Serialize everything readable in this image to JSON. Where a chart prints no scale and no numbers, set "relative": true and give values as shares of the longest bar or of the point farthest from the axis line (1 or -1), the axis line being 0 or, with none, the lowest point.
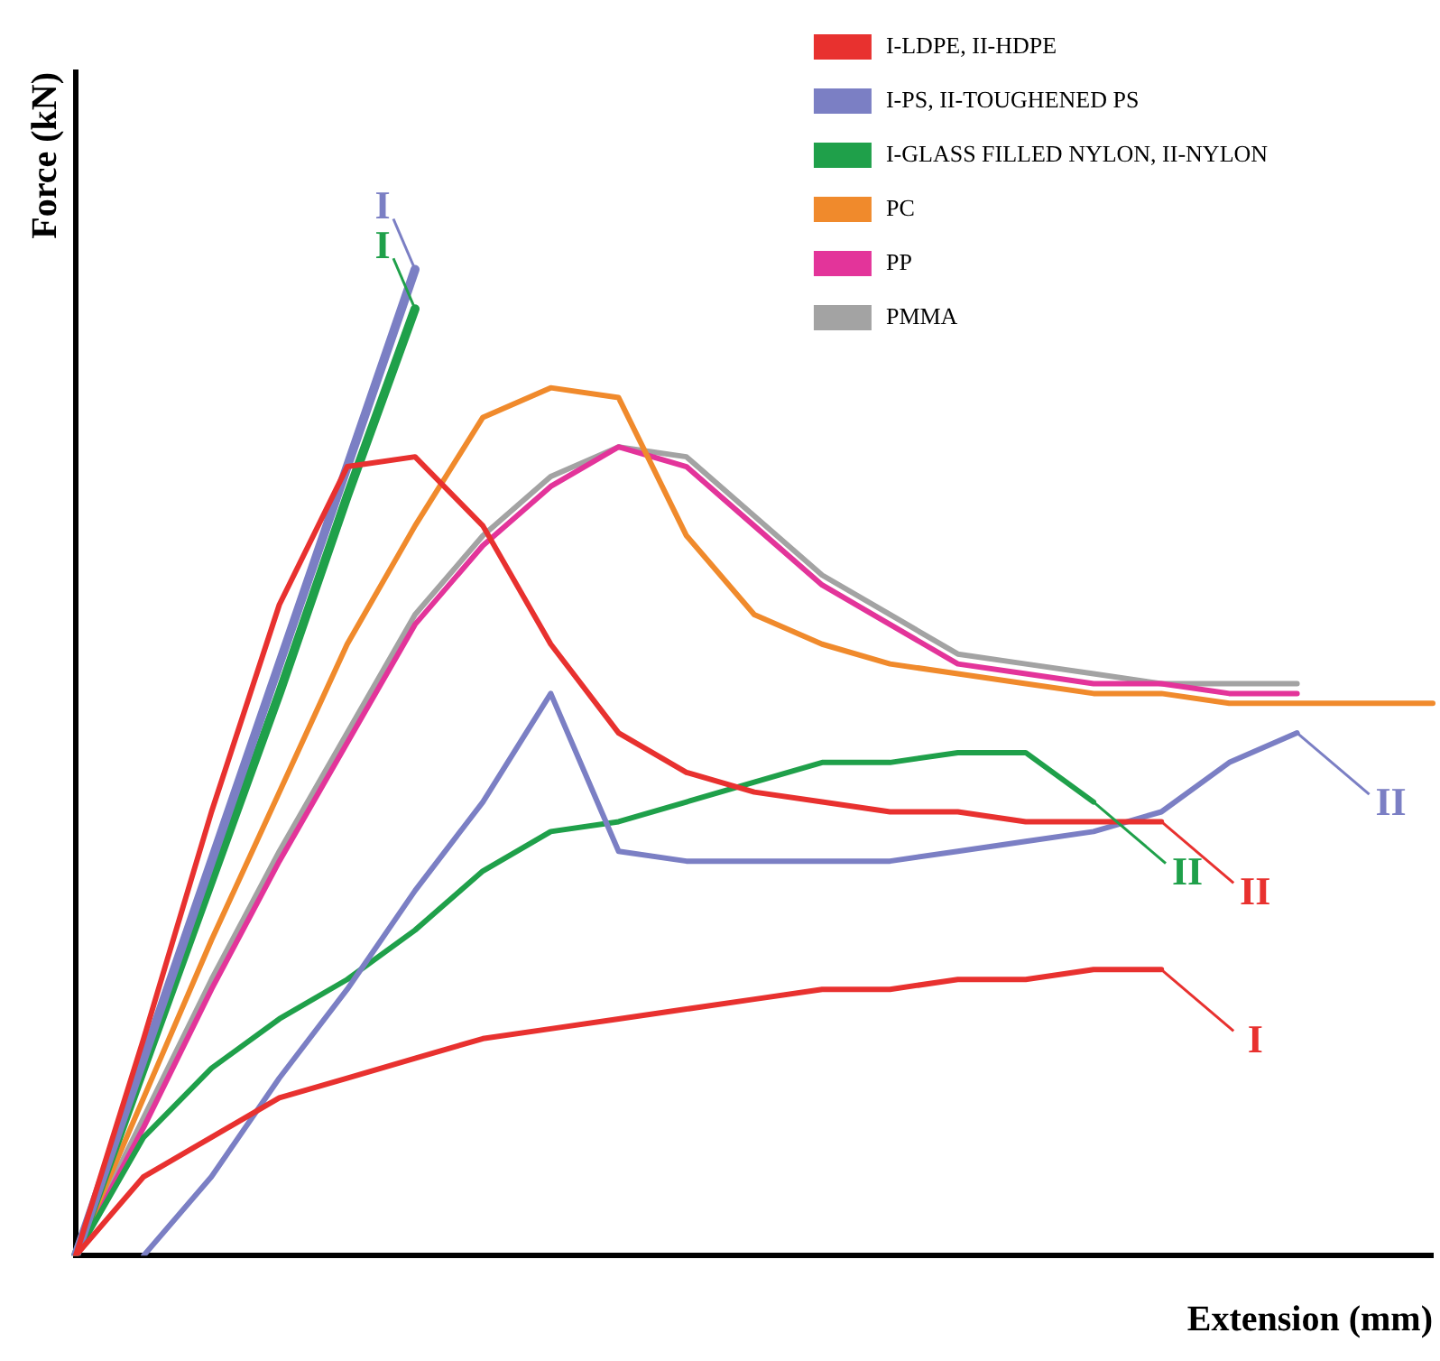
{
  "chart_data": {
    "type": "line",
    "relative": true,
    "xlabel": "Extension (mm)",
    "ylabel": "Force (kN)",
    "grid": false,
    "legend": "top right",
    "line_style": "solid",
    "categories": [
      null,
      null,
      null,
      null,
      null,
      null,
      null,
      null,
      null,
      null,
      null,
      null,
      null,
      null,
      null,
      null,
      null,
      null,
      null,
      null,
      null
    ],
    "series": [
      {
        "name": "I-LDPE, II-HDPE",
        "color": "#e8312f",
        "values": [
          0,
          0.08,
          0.12,
          0.16,
          0.18,
          0.2,
          0.22,
          0.23,
          0.24,
          0.25,
          0.26,
          0.27,
          0.27,
          0.28,
          0.28,
          0.29,
          0.29,
          null,
          null,
          null,
          null
        ]
      },
      {
        "color": "#e8312f",
        "values": [
          0,
          0.22,
          0.45,
          0.66,
          0.8,
          0.81,
          0.74,
          0.62,
          0.53,
          0.49,
          0.47,
          0.46,
          0.45,
          0.45,
          0.44,
          0.44,
          0.44,
          null,
          null,
          null,
          null
        ]
      },
      {
        "name": "I-PS, II-TOUGHENED PS",
        "color": "#7b7fc4",
        "values": [
          0,
          0.2,
          0.4,
          0.6,
          0.8,
          1.0,
          null,
          null,
          null,
          null,
          null,
          null,
          null,
          null,
          null,
          null,
          null,
          null,
          null,
          null,
          null
        ]
      },
      {
        "color": "#7b7fc4",
        "values": [
          null,
          0,
          0.08,
          0.18,
          0.27,
          0.37,
          0.46,
          0.57,
          0.41,
          0.4,
          0.4,
          0.4,
          0.4,
          0.41,
          0.42,
          0.43,
          0.45,
          0.5,
          0.53,
          null,
          null
        ]
      },
      {
        "name": "I-GLASS FILLED NYLON, II-NYLON",
        "color": "#1fa04a",
        "values": [
          0,
          0.19,
          0.38,
          0.57,
          0.77,
          0.96,
          null,
          null,
          null,
          null,
          null,
          null,
          null,
          null,
          null,
          null,
          null,
          null,
          null,
          null,
          null
        ]
      },
      {
        "color": "#1fa04a",
        "values": [
          0,
          0.12,
          0.19,
          0.24,
          0.28,
          0.33,
          0.39,
          0.43,
          0.44,
          0.46,
          0.48,
          0.5,
          0.5,
          0.51,
          0.51,
          0.46,
          null,
          null,
          null,
          null,
          null
        ]
      },
      {
        "name": "PC",
        "color": "#f08a2c",
        "values": [
          0,
          0.16,
          0.32,
          0.47,
          0.62,
          0.74,
          0.85,
          0.88,
          0.87,
          0.73,
          0.65,
          0.62,
          0.6,
          0.59,
          0.58,
          0.57,
          0.57,
          0.56,
          0.56,
          0.56,
          0.56
        ]
      },
      {
        "name": "PP",
        "color": "#e3349a",
        "values": [
          0,
          0.13,
          0.27,
          0.4,
          0.52,
          0.64,
          0.72,
          0.78,
          0.82,
          0.8,
          0.74,
          0.68,
          0.64,
          0.6,
          0.59,
          0.58,
          0.58,
          0.57,
          0.57,
          null,
          null
        ]
      },
      {
        "name": "PMMA",
        "color": "#a3a3a3",
        "values": [
          0,
          0.14,
          0.28,
          0.41,
          0.53,
          0.65,
          0.73,
          0.79,
          0.82,
          0.81,
          0.75,
          0.69,
          0.65,
          0.61,
          0.6,
          0.59,
          0.58,
          0.58,
          0.58,
          null,
          null
        ]
      }
    ],
    "annotations": [
      "I",
      "II",
      "I",
      "II",
      "I",
      "II"
    ]
  }
}
